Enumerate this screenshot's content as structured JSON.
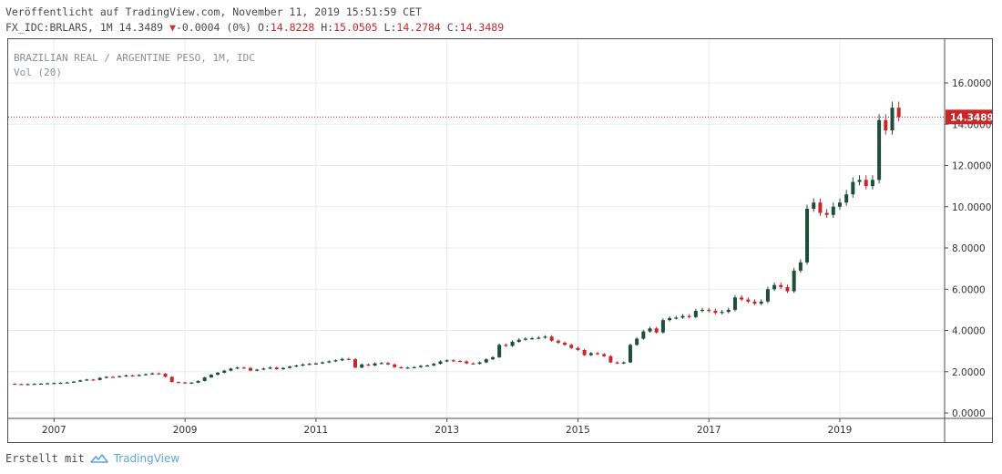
{
  "header": {
    "published": "Veröffentlicht auf TradingView.com, November 11, 2019 15:51:59 CET",
    "symbol": "FX_IDC:BRLARS, 1M 14.3489",
    "change": "-0.0004 (0%)",
    "ohlc": {
      "open_label": "O:",
      "open": "14.8228",
      "high_label": "H:",
      "high": "15.0505",
      "low_label": "L:",
      "low": "14.2784",
      "close_label": "C:",
      "close": "14.3489"
    }
  },
  "legend": {
    "series_title": "BRAZILIAN REAL / ARGENTINE PESO, 1M, IDC",
    "volume": "Vol (20)"
  },
  "footer": {
    "created_with": "Erstellt mit",
    "brand": "TradingView"
  },
  "colors": {
    "up": "#1e4d3a",
    "down": "#c62828",
    "price_line": "#b71c1c",
    "price_label_bg": "#c62828",
    "grid": "#e8ecf0"
  },
  "chart_data": {
    "type": "candlestick",
    "title": "BRAZILIAN REAL / ARGENTINE PESO, 1M, IDC",
    "interval": "1M",
    "x_tick_labels": [
      "2007",
      "2009",
      "2011",
      "2013",
      "2015",
      "2017",
      "2019"
    ],
    "y_tick_labels": [
      "0.0000",
      "2.0000",
      "4.0000",
      "6.0000",
      "8.0000",
      "10.0000",
      "12.0000",
      "14.0000",
      "16.0000"
    ],
    "ylim": [
      0,
      16
    ],
    "xlim": [
      2006.3,
      2020.6
    ],
    "last_price": 14.3489,
    "last_price_label": "14.3489",
    "grid": true,
    "series": [
      {
        "t": 2006.4,
        "c": 1.4
      },
      {
        "t": 2006.5,
        "c": 1.38
      },
      {
        "t": 2006.6,
        "c": 1.4
      },
      {
        "t": 2006.7,
        "c": 1.41
      },
      {
        "t": 2006.8,
        "c": 1.42
      },
      {
        "t": 2006.9,
        "c": 1.44
      },
      {
        "t": 2007.0,
        "c": 1.45
      },
      {
        "t": 2007.1,
        "c": 1.46
      },
      {
        "t": 2007.2,
        "c": 1.48
      },
      {
        "t": 2007.3,
        "c": 1.52
      },
      {
        "t": 2007.4,
        "c": 1.58
      },
      {
        "t": 2007.5,
        "c": 1.62
      },
      {
        "t": 2007.6,
        "c": 1.6
      },
      {
        "t": 2007.7,
        "c": 1.7
      },
      {
        "t": 2007.8,
        "c": 1.75
      },
      {
        "t": 2007.9,
        "c": 1.74
      },
      {
        "t": 2008.0,
        "c": 1.78
      },
      {
        "t": 2008.1,
        "c": 1.82
      },
      {
        "t": 2008.2,
        "c": 1.8
      },
      {
        "t": 2008.3,
        "c": 1.84
      },
      {
        "t": 2008.4,
        "c": 1.88
      },
      {
        "t": 2008.5,
        "c": 1.92
      },
      {
        "t": 2008.6,
        "c": 1.9
      },
      {
        "t": 2008.7,
        "c": 1.75
      },
      {
        "t": 2008.8,
        "c": 1.5
      },
      {
        "t": 2008.9,
        "c": 1.48
      },
      {
        "t": 2009.0,
        "c": 1.45
      },
      {
        "t": 2009.1,
        "c": 1.47
      },
      {
        "t": 2009.2,
        "c": 1.55
      },
      {
        "t": 2009.3,
        "c": 1.72
      },
      {
        "t": 2009.4,
        "c": 1.85
      },
      {
        "t": 2009.5,
        "c": 1.95
      },
      {
        "t": 2009.6,
        "c": 2.05
      },
      {
        "t": 2009.7,
        "c": 2.15
      },
      {
        "t": 2009.8,
        "c": 2.2
      },
      {
        "t": 2009.9,
        "c": 2.18
      },
      {
        "t": 2010.0,
        "c": 2.05
      },
      {
        "t": 2010.1,
        "c": 2.1
      },
      {
        "t": 2010.2,
        "c": 2.15
      },
      {
        "t": 2010.3,
        "c": 2.2
      },
      {
        "t": 2010.4,
        "c": 2.12
      },
      {
        "t": 2010.5,
        "c": 2.18
      },
      {
        "t": 2010.6,
        "c": 2.25
      },
      {
        "t": 2010.7,
        "c": 2.3
      },
      {
        "t": 2010.8,
        "c": 2.35
      },
      {
        "t": 2010.9,
        "c": 2.38
      },
      {
        "t": 2011.0,
        "c": 2.4
      },
      {
        "t": 2011.1,
        "c": 2.45
      },
      {
        "t": 2011.2,
        "c": 2.5
      },
      {
        "t": 2011.3,
        "c": 2.55
      },
      {
        "t": 2011.4,
        "c": 2.62
      },
      {
        "t": 2011.5,
        "c": 2.6
      },
      {
        "t": 2011.6,
        "c": 2.2
      },
      {
        "t": 2011.7,
        "c": 2.35
      },
      {
        "t": 2011.8,
        "c": 2.3
      },
      {
        "t": 2011.9,
        "c": 2.4
      },
      {
        "t": 2012.0,
        "c": 2.42
      },
      {
        "t": 2012.1,
        "c": 2.35
      },
      {
        "t": 2012.2,
        "c": 2.22
      },
      {
        "t": 2012.3,
        "c": 2.18
      },
      {
        "t": 2012.4,
        "c": 2.2
      },
      {
        "t": 2012.5,
        "c": 2.22
      },
      {
        "t": 2012.6,
        "c": 2.28
      },
      {
        "t": 2012.7,
        "c": 2.3
      },
      {
        "t": 2012.8,
        "c": 2.38
      },
      {
        "t": 2012.9,
        "c": 2.5
      },
      {
        "t": 2013.0,
        "c": 2.55
      },
      {
        "t": 2013.1,
        "c": 2.52
      },
      {
        "t": 2013.2,
        "c": 2.5
      },
      {
        "t": 2013.3,
        "c": 2.4
      },
      {
        "t": 2013.4,
        "c": 2.38
      },
      {
        "t": 2013.5,
        "c": 2.45
      },
      {
        "t": 2013.6,
        "c": 2.6
      },
      {
        "t": 2013.7,
        "c": 2.7
      },
      {
        "t": 2013.8,
        "c": 3.3
      },
      {
        "t": 2013.9,
        "c": 3.25
      },
      {
        "t": 2014.0,
        "c": 3.45
      },
      {
        "t": 2014.1,
        "c": 3.55
      },
      {
        "t": 2014.2,
        "c": 3.6
      },
      {
        "t": 2014.3,
        "c": 3.62
      },
      {
        "t": 2014.4,
        "c": 3.65
      },
      {
        "t": 2014.5,
        "c": 3.7
      },
      {
        "t": 2014.6,
        "c": 3.5
      },
      {
        "t": 2014.7,
        "c": 3.4
      },
      {
        "t": 2014.8,
        "c": 3.3
      },
      {
        "t": 2014.9,
        "c": 3.15
      },
      {
        "t": 2015.0,
        "c": 3.05
      },
      {
        "t": 2015.1,
        "c": 2.8
      },
      {
        "t": 2015.2,
        "c": 2.9
      },
      {
        "t": 2015.3,
        "c": 2.85
      },
      {
        "t": 2015.4,
        "c": 2.75
      },
      {
        "t": 2015.5,
        "c": 2.45
      },
      {
        "t": 2015.6,
        "c": 2.4
      },
      {
        "t": 2015.7,
        "c": 2.45
      },
      {
        "t": 2015.8,
        "c": 3.3
      },
      {
        "t": 2015.9,
        "c": 3.6
      },
      {
        "t": 2016.0,
        "c": 3.95
      },
      {
        "t": 2016.1,
        "c": 4.1
      },
      {
        "t": 2016.2,
        "c": 3.9
      },
      {
        "t": 2016.3,
        "c": 4.5
      },
      {
        "t": 2016.4,
        "c": 4.6
      },
      {
        "t": 2016.5,
        "c": 4.62
      },
      {
        "t": 2016.6,
        "c": 4.7
      },
      {
        "t": 2016.7,
        "c": 4.65
      },
      {
        "t": 2016.8,
        "c": 4.95
      },
      {
        "t": 2016.9,
        "c": 5.0
      },
      {
        "t": 2017.0,
        "c": 4.95
      },
      {
        "t": 2017.1,
        "c": 4.85
      },
      {
        "t": 2017.2,
        "c": 4.9
      },
      {
        "t": 2017.3,
        "c": 5.0
      },
      {
        "t": 2017.4,
        "c": 5.6
      },
      {
        "t": 2017.5,
        "c": 5.5
      },
      {
        "t": 2017.6,
        "c": 5.4
      },
      {
        "t": 2017.7,
        "c": 5.3
      },
      {
        "t": 2017.8,
        "c": 5.4
      },
      {
        "t": 2017.9,
        "c": 6.0
      },
      {
        "t": 2018.0,
        "c": 6.2
      },
      {
        "t": 2018.1,
        "c": 6.1
      },
      {
        "t": 2018.2,
        "c": 5.9
      },
      {
        "t": 2018.3,
        "c": 6.9
      },
      {
        "t": 2018.4,
        "c": 7.3
      },
      {
        "t": 2018.5,
        "c": 9.9
      },
      {
        "t": 2018.6,
        "c": 10.2
      },
      {
        "t": 2018.7,
        "c": 9.7
      },
      {
        "t": 2018.8,
        "c": 9.6
      },
      {
        "t": 2018.9,
        "c": 10.0
      },
      {
        "t": 2019.0,
        "c": 10.2
      },
      {
        "t": 2019.1,
        "c": 10.6
      },
      {
        "t": 2019.2,
        "c": 11.2
      },
      {
        "t": 2019.3,
        "c": 11.3
      },
      {
        "t": 2019.4,
        "c": 11.0
      },
      {
        "t": 2019.5,
        "c": 11.3
      },
      {
        "t": 2019.6,
        "c": 14.2
      },
      {
        "t": 2019.7,
        "c": 13.7
      },
      {
        "t": 2019.8,
        "c": 14.8
      },
      {
        "t": 2019.9,
        "c": 14.35
      }
    ]
  }
}
